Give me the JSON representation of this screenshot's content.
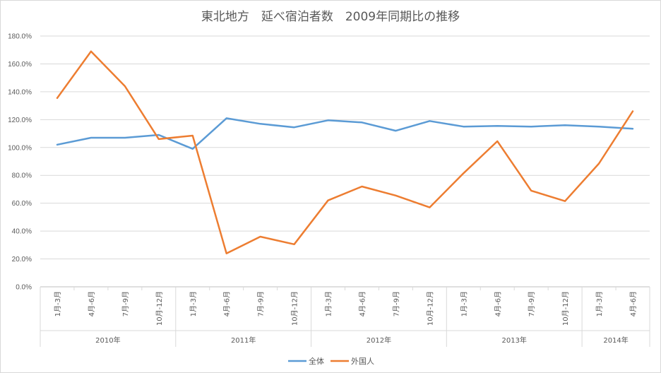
{
  "chart_data": {
    "type": "line",
    "title": "東北地方　延べ宿泊者数　2009年同期比の推移",
    "ylim": [
      0,
      180
    ],
    "ytick_step": 20,
    "ytick_labels": [
      "0.0%",
      "20.0%",
      "40.0%",
      "60.0%",
      "80.0%",
      "100.0%",
      "120.0%",
      "140.0%",
      "160.0%",
      "180.0%"
    ],
    "grid": true,
    "legend_position": "bottom",
    "categories": [
      "1月-3月",
      "4月-6月",
      "7月-9月",
      "10月-12月",
      "1月-3月",
      "4月-6月",
      "7月-9月",
      "10月-12月",
      "1月-3月",
      "4月-6月",
      "7月-9月",
      "10月-12月",
      "1月-3月",
      "4月-6月",
      "7月-9月",
      "10月-12月",
      "1月-3月",
      "4月-6月"
    ],
    "groups": [
      {
        "label": "2010年",
        "count": 4
      },
      {
        "label": "2011年",
        "count": 4
      },
      {
        "label": "2012年",
        "count": 4
      },
      {
        "label": "2013年",
        "count": 4
      },
      {
        "label": "2014年",
        "count": 2
      }
    ],
    "series": [
      {
        "name": "全体",
        "color": "#5B9BD5",
        "values": [
          102,
          107,
          107,
          109,
          99,
          121,
          117,
          114.5,
          119.5,
          118,
          112,
          119,
          115,
          115.5,
          115,
          116,
          115,
          113.5
        ]
      },
      {
        "name": "外国人",
        "color": "#ED7D31",
        "values": [
          135.5,
          169,
          144,
          106,
          108.5,
          24,
          36,
          30.5,
          62,
          72,
          65.5,
          57,
          81.5,
          104.5,
          69,
          61.5,
          88.5,
          126
        ]
      }
    ]
  }
}
